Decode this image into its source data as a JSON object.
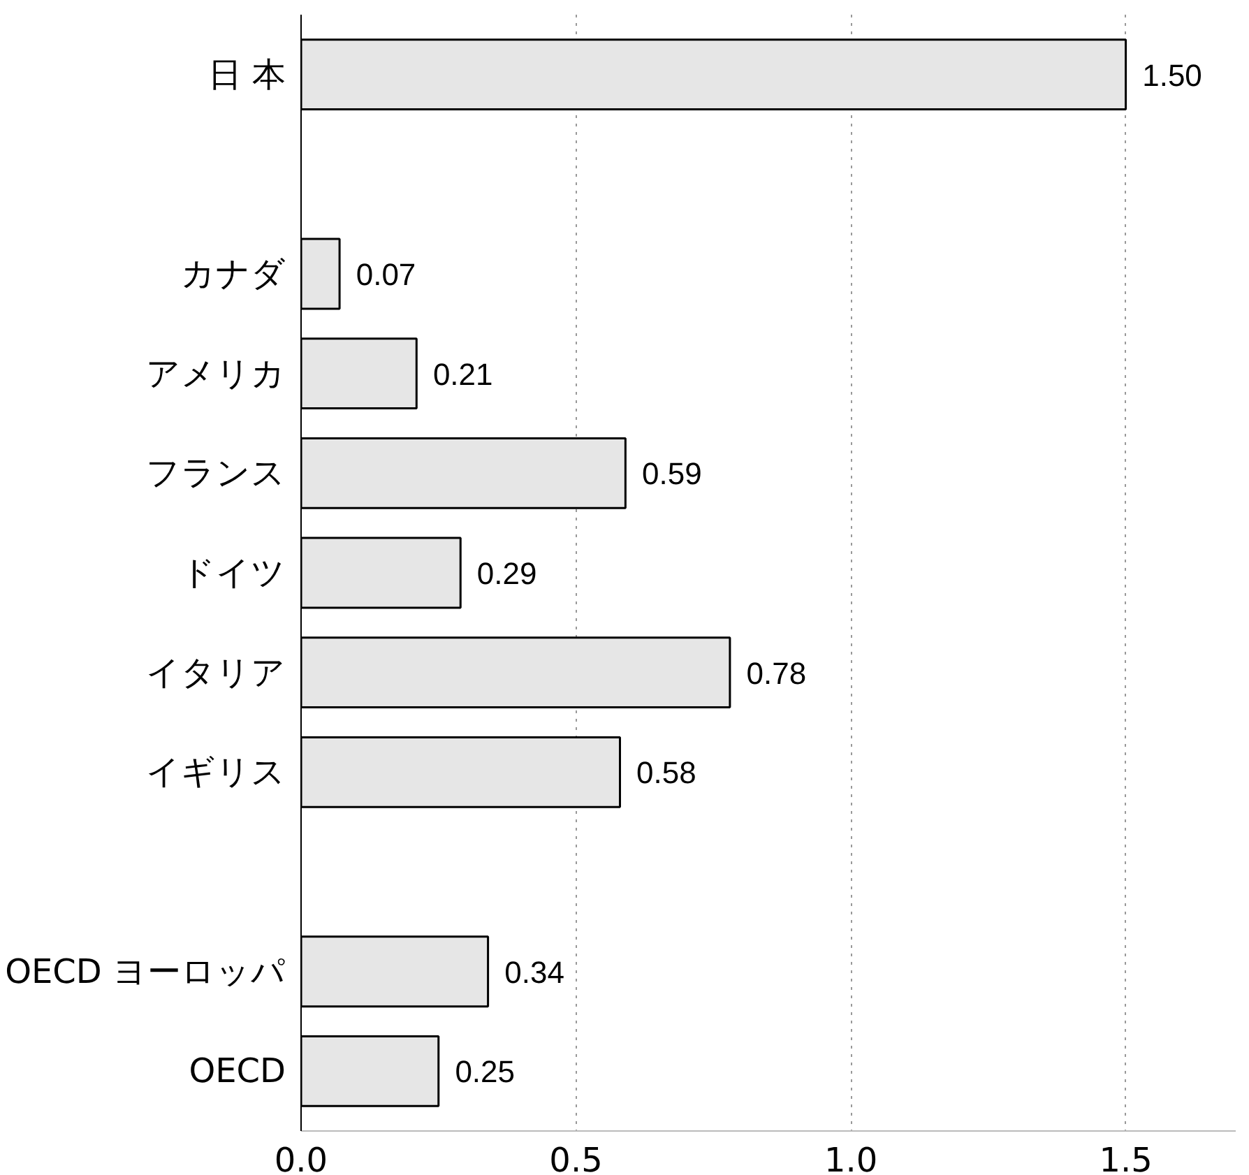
{
  "chart_data": {
    "type": "bar",
    "orientation": "horizontal",
    "categories": [
      "日 本",
      null,
      "カナダ",
      "アメリカ",
      "フランス",
      "ドイツ",
      "イタリア",
      "イギリス",
      null,
      "OECD ヨーロッパ",
      "OECD"
    ],
    "values": [
      1.5,
      null,
      0.07,
      0.21,
      0.59,
      0.29,
      0.78,
      0.58,
      null,
      0.34,
      0.25
    ],
    "value_labels": [
      "1.50",
      null,
      "0.07",
      "0.21",
      "0.59",
      "0.29",
      "0.78",
      "0.58",
      null,
      "0.34",
      "0.25"
    ],
    "color": "#e6e6e6",
    "xlim": [
      0,
      1.7
    ],
    "xticks": [
      {
        "value": 0,
        "label": "0.0"
      },
      {
        "value": 0.5,
        "label": "0.5"
      },
      {
        "value": 1,
        "label": "1.0"
      },
      {
        "value": 1.5,
        "label": "1.5"
      }
    ],
    "grid": "x"
  }
}
